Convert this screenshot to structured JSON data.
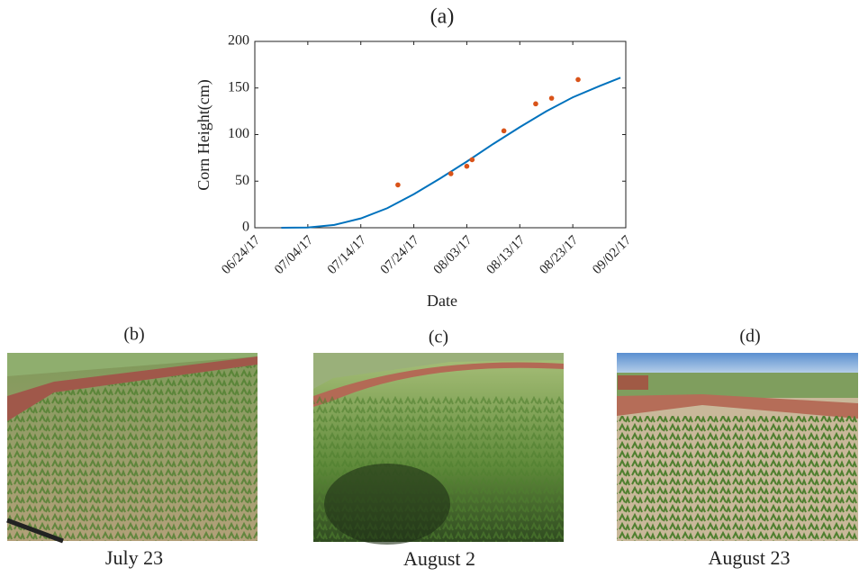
{
  "chart_data": {
    "type": "scatter",
    "title": "(a)",
    "x_label": "Date",
    "y_label": "Corn Height(cm)",
    "xlim": [
      "06/24/17",
      "09/02/17"
    ],
    "xticks": [
      "06/24/17",
      "07/04/17",
      "07/14/17",
      "07/24/17",
      "08/03/17",
      "08/13/17",
      "08/23/17",
      "09/02/17"
    ],
    "ylim": [
      0,
      200
    ],
    "yticks": [
      0,
      50,
      100,
      150,
      200
    ],
    "series": [
      {
        "type": "line",
        "color": "#0072bd",
        "x": [
          "06/29/17",
          "07/04/17",
          "07/09/17",
          "07/14/17",
          "07/19/17",
          "07/24/17",
          "07/29/17",
          "08/03/17",
          "08/08/17",
          "08/13/17",
          "08/18/17",
          "08/23/17",
          "08/28/17",
          "09/01/17"
        ],
        "values": [
          0,
          0.3,
          3,
          10,
          21,
          36,
          53,
          71,
          90,
          108,
          125,
          140,
          152,
          161
        ]
      },
      {
        "type": "scatter",
        "color": "#d95319",
        "x": [
          "07/21/17",
          "07/31/17",
          "08/03/17",
          "08/04/17",
          "08/10/17",
          "08/16/17",
          "08/19/17",
          "08/24/17"
        ],
        "values": [
          46,
          58,
          66,
          73,
          104,
          133,
          139,
          159
        ]
      }
    ]
  },
  "panels": [
    {
      "label": "(b)",
      "caption": "July 23"
    },
    {
      "label": "(c)",
      "caption": "August 2"
    },
    {
      "label": "(d)",
      "caption": "August 23"
    }
  ]
}
